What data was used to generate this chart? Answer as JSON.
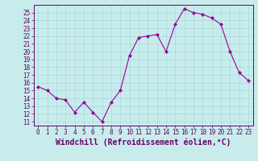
{
  "x": [
    0,
    1,
    2,
    3,
    4,
    5,
    6,
    7,
    8,
    9,
    10,
    11,
    12,
    13,
    14,
    15,
    16,
    17,
    18,
    19,
    20,
    21,
    22,
    23
  ],
  "y": [
    15.5,
    15.0,
    14.0,
    13.8,
    12.2,
    13.5,
    12.2,
    11.0,
    13.5,
    15.0,
    19.5,
    21.8,
    22.0,
    22.2,
    20.0,
    23.5,
    25.5,
    25.0,
    24.8,
    24.3,
    23.5,
    20.0,
    17.3,
    16.3
  ],
  "line_color": "#990099",
  "marker": "D",
  "marker_size": 2,
  "bg_color": "#c8ecec",
  "grid_color": "#aadddd",
  "xlabel": "Windchill (Refroidissement éolien,°C)",
  "ylim": [
    10.5,
    26.0
  ],
  "xlim": [
    -0.5,
    23.5
  ],
  "yticks": [
    11,
    12,
    13,
    14,
    15,
    16,
    17,
    18,
    19,
    20,
    21,
    22,
    23,
    24,
    25
  ],
  "xticks": [
    0,
    1,
    2,
    3,
    4,
    5,
    6,
    7,
    8,
    9,
    10,
    11,
    12,
    13,
    14,
    15,
    16,
    17,
    18,
    19,
    20,
    21,
    22,
    23
  ],
  "tick_label_fontsize": 5.5,
  "xlabel_fontsize": 7
}
